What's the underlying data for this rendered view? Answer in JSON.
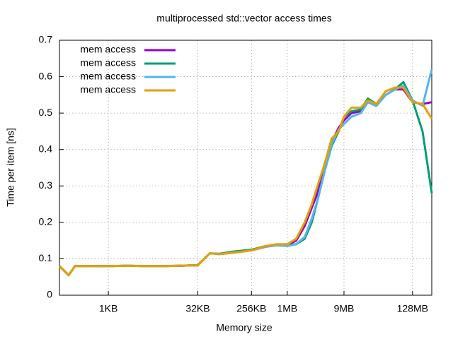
{
  "chart_data": {
    "type": "line",
    "title": "multiprocessed std::vector access times",
    "x_label": "Memory size",
    "y_label": "Time per item [ns]",
    "log_x": true,
    "grid": true,
    "legend_position": "top-left",
    "xlim": [
      154,
      283000000
    ],
    "ylim": [
      0,
      0.7
    ],
    "xticks": [
      {
        "value": 1024,
        "label": "1KB"
      },
      {
        "value": 32768,
        "label": "32KB"
      },
      {
        "value": 262144,
        "label": "256KB"
      },
      {
        "value": 1048576,
        "label": "1MB"
      },
      {
        "value": 9437184,
        "label": "9MB"
      },
      {
        "value": 134217728,
        "label": "128MB"
      }
    ],
    "yticks": [
      0,
      0.1,
      0.2,
      0.3,
      0.4,
      0.5,
      0.6,
      0.7
    ],
    "x": [
      154,
      220,
      281,
      543,
      1024,
      2150,
      4270,
      8470,
      16850,
      25450,
      32768,
      52000,
      76300,
      132000,
      262144,
      455000,
      688000,
      1048576,
      1483000,
      2060000,
      2710000,
      3380000,
      4450000,
      5850000,
      7700000,
      9437184,
      12600000,
      18100000,
      23800000,
      33100000,
      47400000,
      67800000,
      94300000,
      134217728,
      198000000,
      283000000
    ],
    "series": [
      {
        "name": "mem access",
        "color": "#9400d3",
        "values": [
          0.08,
          0.055,
          0.08,
          0.08,
          0.08,
          0.081,
          0.08,
          0.08,
          0.081,
          0.082,
          0.082,
          0.115,
          0.113,
          0.117,
          0.123,
          0.133,
          0.137,
          0.137,
          0.15,
          0.19,
          0.24,
          0.28,
          0.36,
          0.42,
          0.46,
          0.48,
          0.5,
          0.505,
          0.53,
          0.52,
          0.55,
          0.565,
          0.565,
          0.53,
          0.525,
          0.53
        ]
      },
      {
        "name": "mem access",
        "color": "#009e73",
        "values": [
          0.08,
          0.055,
          0.08,
          0.08,
          0.08,
          0.081,
          0.08,
          0.08,
          0.081,
          0.082,
          0.083,
          0.115,
          0.114,
          0.12,
          0.125,
          0.135,
          0.137,
          0.137,
          0.14,
          0.155,
          0.2,
          0.26,
          0.34,
          0.41,
          0.45,
          0.49,
          0.505,
          0.51,
          0.54,
          0.525,
          0.55,
          0.565,
          0.585,
          0.535,
          0.45,
          0.28
        ]
      },
      {
        "name": "mem access",
        "color": "#56b4e9",
        "values": [
          0.08,
          0.055,
          0.08,
          0.08,
          0.08,
          0.081,
          0.08,
          0.08,
          0.081,
          0.082,
          0.082,
          0.115,
          0.113,
          0.117,
          0.123,
          0.133,
          0.137,
          0.135,
          0.14,
          0.16,
          0.21,
          0.26,
          0.34,
          0.415,
          0.455,
          0.47,
          0.49,
          0.5,
          0.53,
          0.52,
          0.55,
          0.565,
          0.575,
          0.535,
          0.52,
          0.62
        ]
      },
      {
        "name": "mem access",
        "color": "#e69f00",
        "values": [
          0.08,
          0.055,
          0.08,
          0.08,
          0.08,
          0.081,
          0.08,
          0.08,
          0.081,
          0.082,
          0.082,
          0.115,
          0.113,
          0.117,
          0.123,
          0.135,
          0.14,
          0.14,
          0.155,
          0.2,
          0.25,
          0.3,
          0.36,
          0.43,
          0.45,
          0.49,
          0.515,
          0.515,
          0.535,
          0.525,
          0.56,
          0.57,
          0.57,
          0.53,
          0.525,
          0.485
        ]
      }
    ]
  }
}
